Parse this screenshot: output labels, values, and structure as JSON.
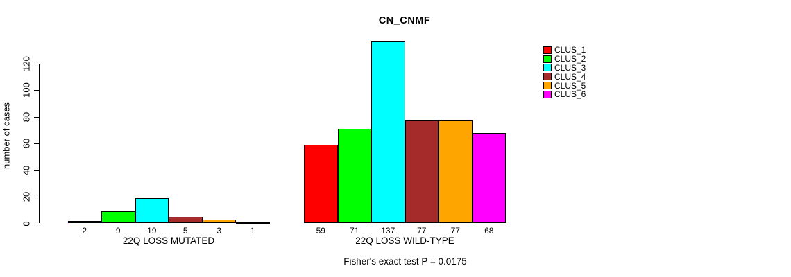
{
  "chart_data": {
    "type": "bar",
    "title": "CN_CNMF",
    "ylabel": "number of cases",
    "xlabel": "",
    "annotation": "Fisher's exact test P = 0.0175",
    "yticks": [
      0,
      20,
      40,
      60,
      80,
      100,
      120
    ],
    "ylim": [
      0,
      137
    ],
    "grid": false,
    "legend_position": "top-right",
    "bar_value_labels": true,
    "categories": [
      "22Q LOSS MUTATED",
      "22Q LOSS WILD-TYPE"
    ],
    "series": [
      {
        "name": "CLUS_1",
        "color": "#ff0000",
        "values": [
          2,
          59
        ]
      },
      {
        "name": "CLUS_2",
        "color": "#00ff00",
        "values": [
          9,
          71
        ]
      },
      {
        "name": "CLUS_3",
        "color": "#00ffff",
        "values": [
          19,
          137
        ]
      },
      {
        "name": "CLUS_4",
        "color": "#a52a2a",
        "values": [
          5,
          77
        ]
      },
      {
        "name": "CLUS_5",
        "color": "#ffa500",
        "values": [
          3,
          77
        ]
      },
      {
        "name": "CLUS_6",
        "color": "#ff00ff",
        "values": [
          1,
          68
        ]
      }
    ]
  }
}
